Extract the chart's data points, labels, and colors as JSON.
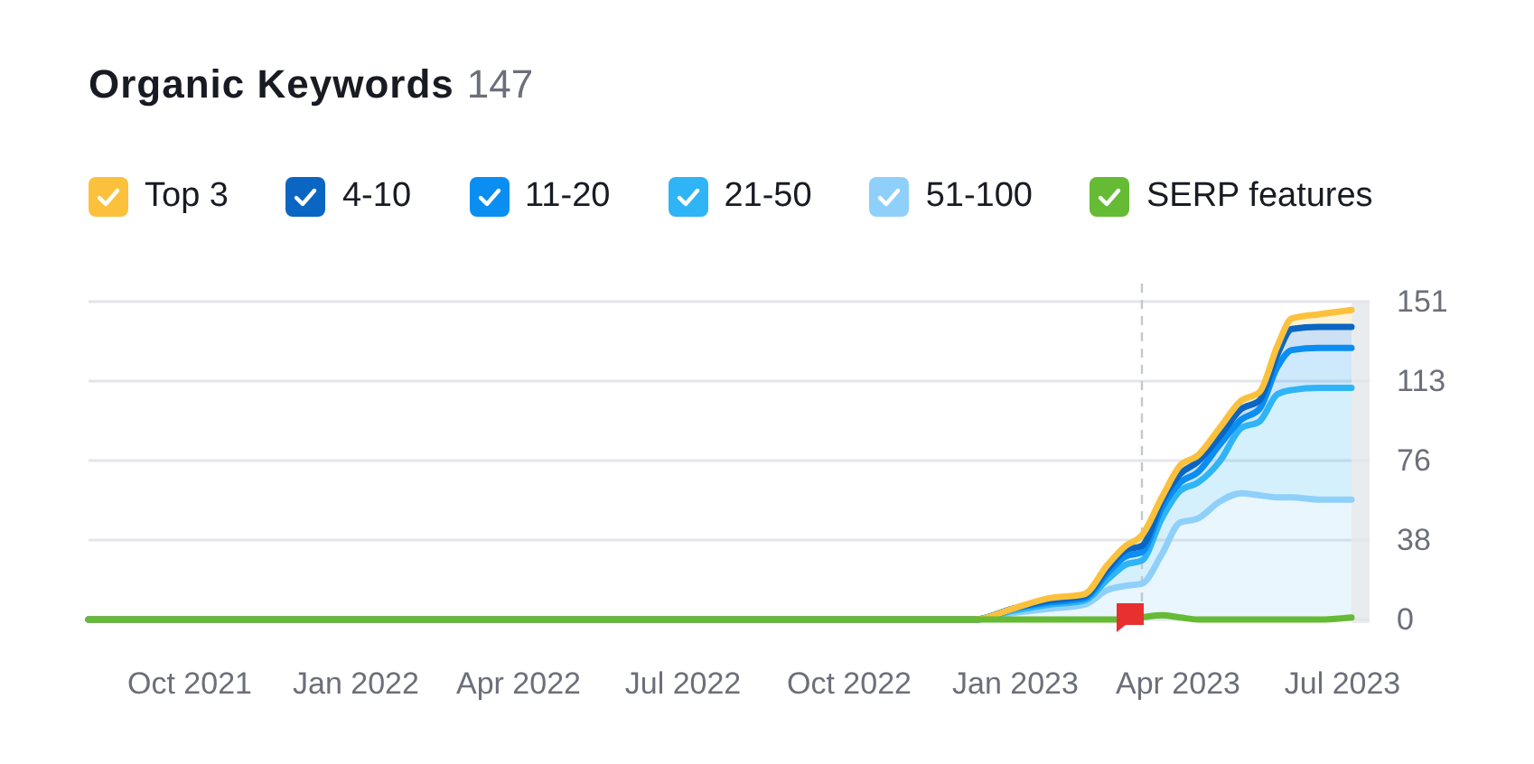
{
  "chart_data": {
    "type": "area",
    "title": "Organic Keywords",
    "subtitle": "147",
    "x": [
      "2021-08-06",
      "2022-12-10",
      "2022-12-30",
      "2023-01-19",
      "2023-02-08",
      "2023-02-21",
      "2023-03-03",
      "2023-03-12",
      "2023-03-23",
      "2023-04-02",
      "2023-04-12",
      "2023-04-24",
      "2023-05-06",
      "2023-05-16",
      "2023-05-26",
      "2023-06-03",
      "2023-06-18",
      "2023-07-06"
    ],
    "series": [
      {
        "name": "51-100",
        "color": "#8fd0fb",
        "values": [
          0,
          0,
          3,
          5,
          7,
          14,
          16,
          17,
          31,
          46,
          48,
          56,
          60,
          59,
          58,
          58,
          57,
          57
        ]
      },
      {
        "name": "21-50",
        "color": "#2fb4f6",
        "values": [
          0,
          0,
          1,
          2,
          2,
          5,
          10,
          11,
          17,
          15,
          17,
          19,
          31,
          35,
          49,
          51,
          53,
          53
        ]
      },
      {
        "name": "11-20",
        "color": "#0a8ef2",
        "values": [
          0,
          0,
          1,
          1,
          1,
          3,
          4,
          4,
          5,
          4,
          5,
          8,
          4,
          6,
          13,
          19,
          19,
          19
        ]
      },
      {
        "name": "4-10",
        "color": "#0a66c2",
        "values": [
          0,
          0,
          0,
          1,
          1,
          2,
          3,
          3,
          3,
          4,
          5,
          4,
          5,
          4,
          6,
          10,
          10,
          10
        ]
      },
      {
        "name": "Top 3",
        "color": "#fcc13c",
        "values": [
          0,
          0,
          0,
          1,
          1,
          2,
          2,
          5,
          2,
          4,
          3,
          4,
          4,
          4,
          4,
          5,
          6,
          8
        ]
      },
      {
        "name": "SERP features",
        "type": "line",
        "color": "#65bb34",
        "values": [
          0,
          0,
          0,
          0,
          0,
          0,
          0,
          1,
          2,
          1,
          0,
          0,
          0,
          0,
          0,
          0,
          0,
          1
        ]
      }
    ],
    "stacked": true,
    "xlim": [
      "2021-08-06",
      "2023-07-16"
    ],
    "xticks": [
      {
        "value": "2021-10-01",
        "label": "Oct 2021"
      },
      {
        "value": "2022-01-01",
        "label": "Jan 2022"
      },
      {
        "value": "2022-04-01",
        "label": "Apr 2022"
      },
      {
        "value": "2022-07-01",
        "label": "Jul 2022"
      },
      {
        "value": "2022-10-01",
        "label": "Oct 2022"
      },
      {
        "value": "2023-01-01",
        "label": "Jan 2023"
      },
      {
        "value": "2023-04-01",
        "label": "Apr 2023"
      },
      {
        "value": "2023-07-01",
        "label": "Jul 2023"
      }
    ],
    "ylim": [
      0,
      151
    ],
    "yticks": [
      0,
      {
        "value": 37.75,
        "label": "38"
      },
      {
        "value": 75.5,
        "label": "76"
      },
      {
        "value": 113.25,
        "label": "113"
      },
      151
    ],
    "grid": "y",
    "legend": "top left",
    "ref_lines": [
      {
        "axis": "x",
        "value": "2023-03-12",
        "color": "#c4c7cf",
        "line_style": "dashed"
      }
    ],
    "bands": [
      {
        "axis": "x",
        "from": "2023-07-06",
        "to": "2023-07-16",
        "color": "#e9ecef"
      }
    ]
  }
}
